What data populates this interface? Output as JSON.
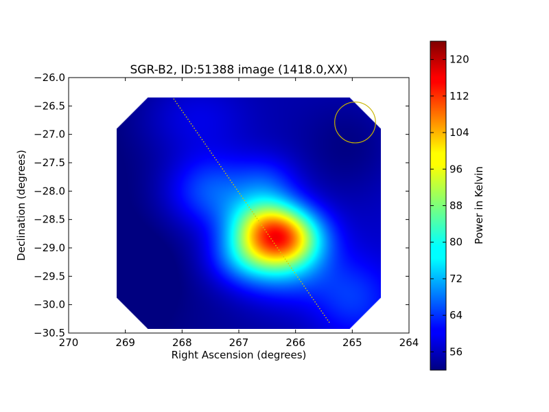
{
  "chart_data": {
    "type": "heatmap",
    "title": "SGR-B2, ID:51388 image (1418.0,XX)",
    "xlabel": "Right Ascension (degrees)",
    "ylabel": "Declination (degrees)",
    "xlim": [
      270,
      264
    ],
    "ylim": [
      -30.5,
      -26.0
    ],
    "x_ticks": [
      270,
      269,
      268,
      267,
      266,
      265,
      264
    ],
    "x_tick_labels": [
      "270",
      "269",
      "268",
      "267",
      "266",
      "265",
      "264"
    ],
    "y_ticks": [
      -26.0,
      -26.5,
      -27.0,
      -27.5,
      -28.0,
      -28.5,
      -29.0,
      -29.5,
      -30.0,
      -30.5
    ],
    "y_tick_labels": [
      "−26.0",
      "−26.5",
      "−27.0",
      "−27.5",
      "−28.0",
      "−28.5",
      "−29.0",
      "−29.5",
      "−30.0",
      "−30.5"
    ],
    "colorbar": {
      "label": "Power in Kelvin",
      "range": [
        52,
        124
      ],
      "ticks": [
        56,
        64,
        72,
        80,
        88,
        96,
        104,
        112,
        120
      ],
      "tick_labels": [
        "56",
        "64",
        "72",
        "80",
        "88",
        "96",
        "104",
        "112",
        "120"
      ],
      "colormap": "jet"
    },
    "map_extent": {
      "ra_min": 264.5,
      "ra_max": 269.15,
      "dec_min": -30.43,
      "dec_max": -26.35,
      "corner_cut_deg": 0.55
    },
    "background_level": 57,
    "components": [
      {
        "ra": 266.2,
        "dec": -28.85,
        "amp": 44,
        "sigma_ra": 0.48,
        "sigma_dec": 0.38
      },
      {
        "ra": 266.6,
        "dec": -28.55,
        "amp": 20,
        "sigma_ra": 0.45,
        "sigma_dec": 0.35
      },
      {
        "ra": 266.9,
        "dec": -29.15,
        "amp": 14,
        "sigma_ra": 0.45,
        "sigma_dec": 0.35
      },
      {
        "ra": 267.5,
        "dec": -28.0,
        "amp": 13,
        "sigma_ra": 0.55,
        "sigma_dec": 0.45
      },
      {
        "ra": 266.5,
        "dec": -27.85,
        "amp": 8,
        "sigma_ra": 0.4,
        "sigma_dec": 0.35
      },
      {
        "ra": 266.2,
        "dec": -29.5,
        "amp": 8,
        "sigma_ra": 0.6,
        "sigma_dec": 0.4
      },
      {
        "ra": 265.0,
        "dec": -29.9,
        "amp": 8,
        "sigma_ra": 0.5,
        "sigma_dec": 0.5
      },
      {
        "ra": 267.8,
        "dec": -26.7,
        "amp": 6,
        "sigma_ra": 0.7,
        "sigma_dec": 0.5
      },
      {
        "ra": 265.0,
        "dec": -27.2,
        "amp": -4,
        "sigma_ra": 0.6,
        "sigma_dec": 0.6
      },
      {
        "ra": 268.8,
        "dec": -29.5,
        "amp": -3,
        "sigma_ra": 0.5,
        "sigma_dec": 0.5
      }
    ],
    "galactic_plane_line": {
      "start": [
        268.15,
        -26.37
      ],
      "end": [
        265.4,
        -30.32
      ],
      "color": "#d4c800",
      "style": "dotted"
    },
    "beam_circle": {
      "ra": 264.95,
      "dec": -26.79,
      "radius_deg": 0.36,
      "color": "#c8b400"
    }
  }
}
